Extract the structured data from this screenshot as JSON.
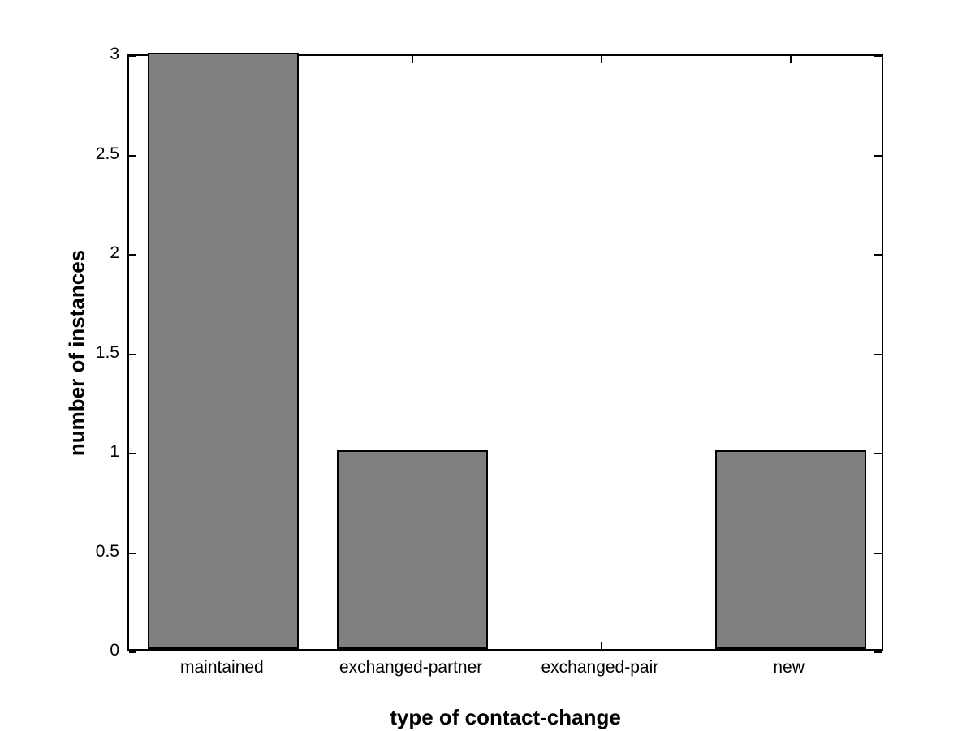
{
  "chart_data": {
    "type": "bar",
    "categories": [
      "maintained",
      "exchanged-partner",
      "exchanged-pair",
      "new"
    ],
    "values": [
      3,
      1,
      0,
      1
    ],
    "title": "",
    "xlabel": "type of contact-change",
    "ylabel": "number of instances",
    "ylim": [
      0,
      3
    ],
    "yticks": [
      0,
      0.5,
      1,
      1.5,
      2,
      2.5,
      3
    ],
    "ytick_labels": [
      "0",
      "0.5",
      "1",
      "1.5",
      "2",
      "2.5",
      "3"
    ],
    "bar_width_fraction": 0.8,
    "grid": false,
    "legend": null,
    "colors": {
      "bar_fill": "#808080",
      "bar_edge": "#000000",
      "axis": "#000000",
      "text": "#000000",
      "background": "#ffffff"
    }
  }
}
